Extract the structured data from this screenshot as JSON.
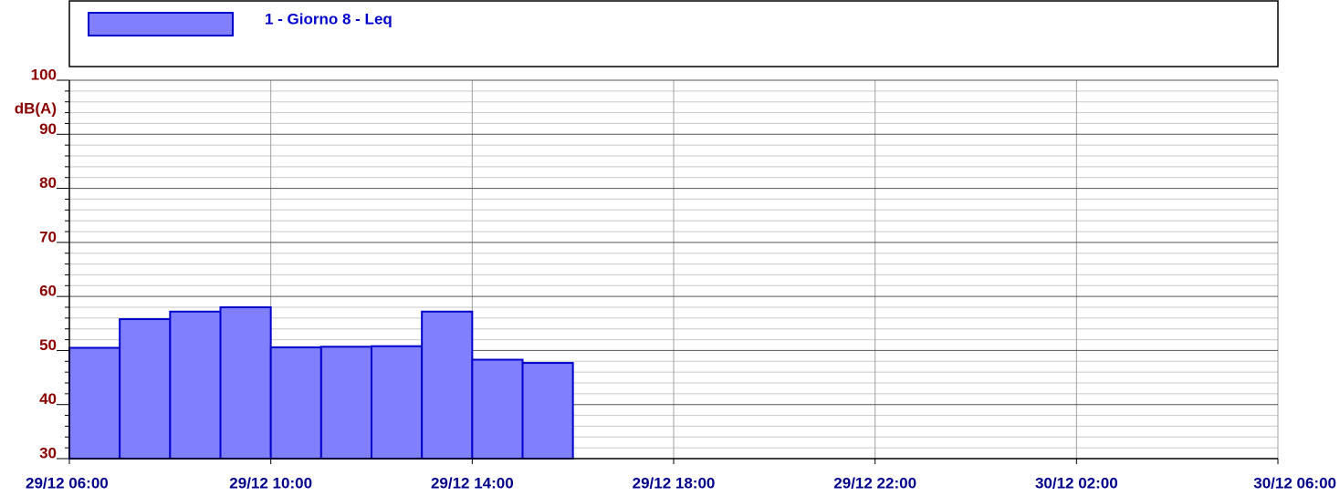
{
  "chart_data": {
    "type": "bar",
    "legend": "top",
    "series": [
      {
        "name": "1 - Giorno 8 - Leq",
        "color": "#8080ff",
        "edge_color": "#0000cc",
        "x": [
          "29/12 06:00",
          "29/12 07:00",
          "29/12 08:00",
          "29/12 09:00",
          "29/12 10:00",
          "29/12 11:00",
          "29/12 12:00",
          "29/12 13:00",
          "29/12 14:00",
          "29/12 15:00"
        ],
        "values": [
          50.5,
          55.8,
          57.2,
          58.0,
          50.6,
          50.7,
          50.8,
          57.2,
          48.3,
          47.7
        ]
      }
    ],
    "y_label": "dB(A)",
    "ylim": [
      30,
      100
    ],
    "yticks": [
      30,
      40,
      50,
      60,
      70,
      80,
      90,
      100
    ],
    "yminorticks": [
      32,
      34,
      36,
      38,
      42,
      44,
      46,
      48,
      52,
      54,
      56,
      58,
      62,
      64,
      66,
      68,
      72,
      74,
      76,
      78,
      82,
      84,
      86,
      88,
      92,
      94,
      96,
      98
    ],
    "xlim": [
      "29/12 06:00",
      "30/12 06:00"
    ],
    "xticks": [
      "29/12 06:00",
      "29/12 10:00",
      "29/12 14:00",
      "29/12 18:00",
      "29/12 22:00",
      "30/12 02:00",
      "30/12 06:00"
    ],
    "grid": true
  }
}
